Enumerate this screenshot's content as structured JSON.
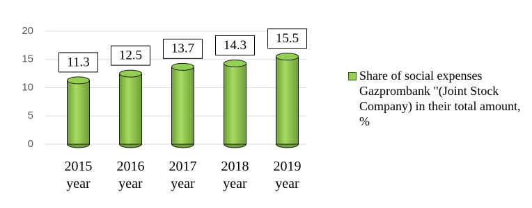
{
  "chart_data": {
    "type": "bar",
    "categories": [
      "2015 year",
      "2016 year",
      "2017 year",
      "2018 year",
      "2019 year"
    ],
    "series": [
      {
        "name": "Share of social expenses Gazprombank \"(Joint Stock Company) in their total amount, %",
        "color": "#92d050",
        "values": [
          11.3,
          12.5,
          13.7,
          14.3,
          15.5
        ]
      }
    ],
    "ylim": [
      0,
      20
    ],
    "yticks": [
      0,
      5,
      10,
      15,
      20
    ],
    "grid": true,
    "legend": "right"
  }
}
